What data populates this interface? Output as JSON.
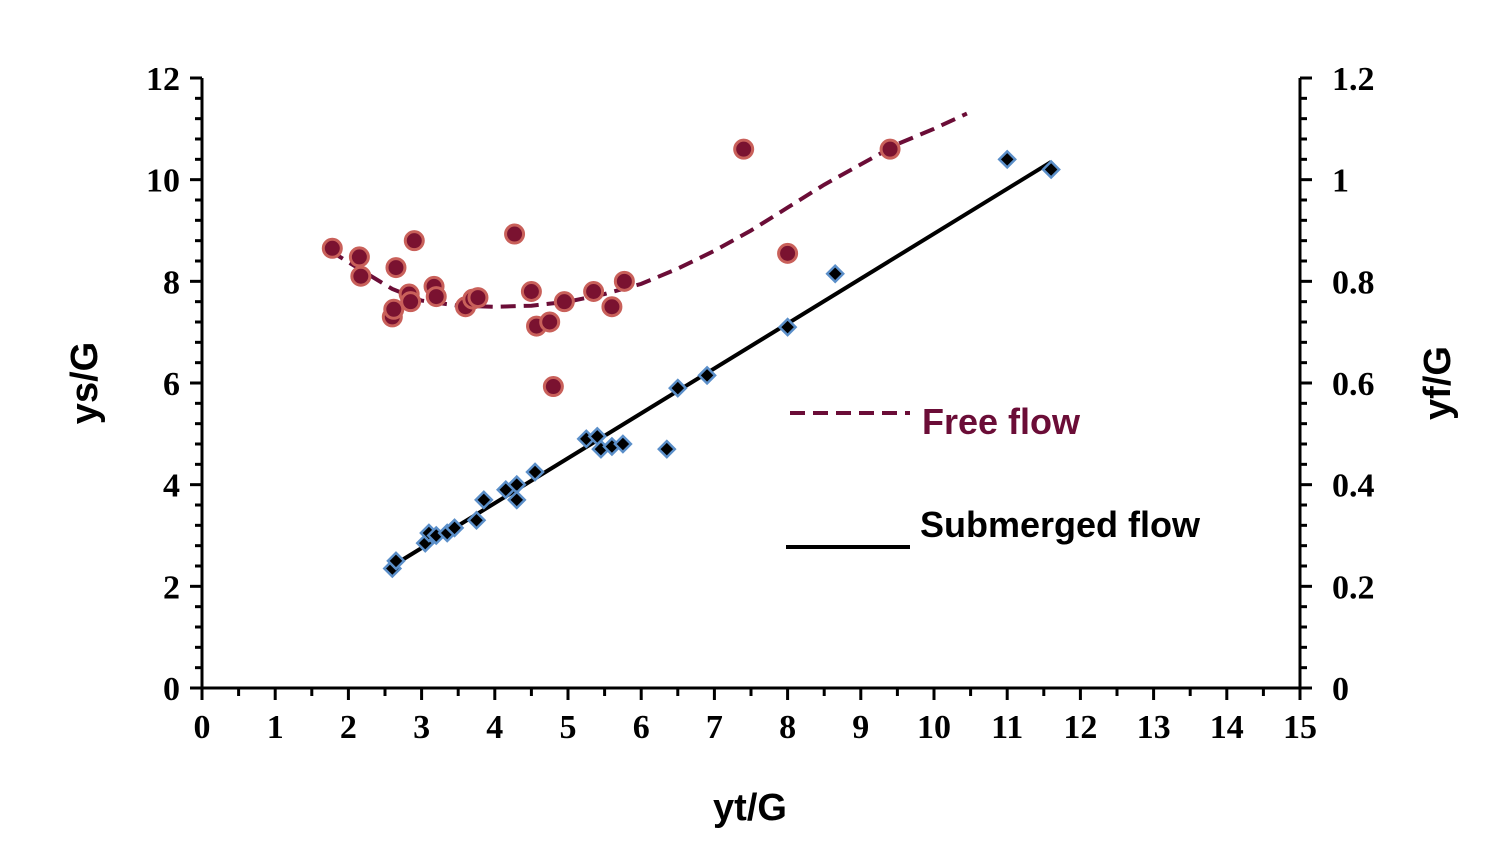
{
  "chart_data": {
    "type": "scatter",
    "xlabel": "yt/G",
    "ylabel": "ys/G",
    "y2label": "yf/G",
    "xlim": [
      0,
      15
    ],
    "ylim": [
      0,
      12
    ],
    "y2lim": [
      0,
      1.2
    ],
    "x_ticks": [
      "0",
      "1",
      "2",
      "3",
      "4",
      "5",
      "6",
      "7",
      "8",
      "9",
      "10",
      "11",
      "12",
      "13",
      "14",
      "15"
    ],
    "y_ticks": [
      "0",
      "2",
      "4",
      "6",
      "8",
      "10",
      "12"
    ],
    "y2_ticks": [
      "0",
      "0.2",
      "0.4",
      "0.6",
      "0.8",
      "1",
      "1.2"
    ],
    "grid": false,
    "legend_position": "inside-right",
    "series": [
      {
        "name": "Free flow",
        "marker": "circle",
        "fit_line_style": "dashed",
        "color": "#6b0d37",
        "marker_fill": "#7a1230",
        "marker_edge": "#c9605a",
        "points": [
          [
            1.78,
            8.65
          ],
          [
            2.15,
            8.48
          ],
          [
            2.17,
            8.1
          ],
          [
            2.6,
            7.3
          ],
          [
            2.62,
            7.45
          ],
          [
            2.65,
            8.27
          ],
          [
            2.83,
            7.75
          ],
          [
            2.85,
            7.6
          ],
          [
            2.9,
            8.8
          ],
          [
            3.17,
            7.9
          ],
          [
            3.2,
            7.7
          ],
          [
            3.6,
            7.5
          ],
          [
            3.7,
            7.65
          ],
          [
            3.77,
            7.68
          ],
          [
            4.27,
            8.93
          ],
          [
            4.5,
            7.8
          ],
          [
            4.57,
            7.12
          ],
          [
            4.75,
            7.2
          ],
          [
            4.8,
            5.93
          ],
          [
            4.95,
            7.6
          ],
          [
            5.35,
            7.8
          ],
          [
            5.6,
            7.5
          ],
          [
            5.77,
            8.0
          ],
          [
            7.4,
            10.6
          ],
          [
            8.0,
            8.55
          ],
          [
            9.4,
            10.6
          ]
        ],
        "fit_curve": [
          [
            1.75,
            8.6
          ],
          [
            2.2,
            8.2
          ],
          [
            2.6,
            7.85
          ],
          [
            3.0,
            7.62
          ],
          [
            3.5,
            7.52
          ],
          [
            4.0,
            7.5
          ],
          [
            4.5,
            7.52
          ],
          [
            5.0,
            7.6
          ],
          [
            5.5,
            7.75
          ],
          [
            6.0,
            7.95
          ],
          [
            6.5,
            8.25
          ],
          [
            7.0,
            8.6
          ],
          [
            7.5,
            9.0
          ],
          [
            8.0,
            9.45
          ],
          [
            8.5,
            9.9
          ],
          [
            9.0,
            10.3
          ],
          [
            9.5,
            10.7
          ],
          [
            10.0,
            11.0
          ],
          [
            10.45,
            11.3
          ]
        ]
      },
      {
        "name": "Submerged flow",
        "marker": "diamond",
        "fit_line_style": "solid",
        "color": "#000000",
        "marker_fill": "#000000",
        "marker_edge": "#5b8fc9",
        "points": [
          [
            2.6,
            2.35
          ],
          [
            2.65,
            2.5
          ],
          [
            3.05,
            2.85
          ],
          [
            3.1,
            3.05
          ],
          [
            3.2,
            3.0
          ],
          [
            3.35,
            3.05
          ],
          [
            3.45,
            3.15
          ],
          [
            3.75,
            3.3
          ],
          [
            3.85,
            3.7
          ],
          [
            4.15,
            3.9
          ],
          [
            4.3,
            4.0
          ],
          [
            4.3,
            3.7
          ],
          [
            4.55,
            4.25
          ],
          [
            5.25,
            4.9
          ],
          [
            5.4,
            4.95
          ],
          [
            5.45,
            4.7
          ],
          [
            5.6,
            4.75
          ],
          [
            5.75,
            4.8
          ],
          [
            6.35,
            4.7
          ],
          [
            6.5,
            5.9
          ],
          [
            6.9,
            6.15
          ],
          [
            8.0,
            7.1
          ],
          [
            8.65,
            8.15
          ],
          [
            11.0,
            10.4
          ],
          [
            11.6,
            10.2
          ]
        ],
        "fit_curve": [
          [
            2.6,
            2.4
          ],
          [
            11.6,
            10.35
          ]
        ]
      }
    ]
  }
}
